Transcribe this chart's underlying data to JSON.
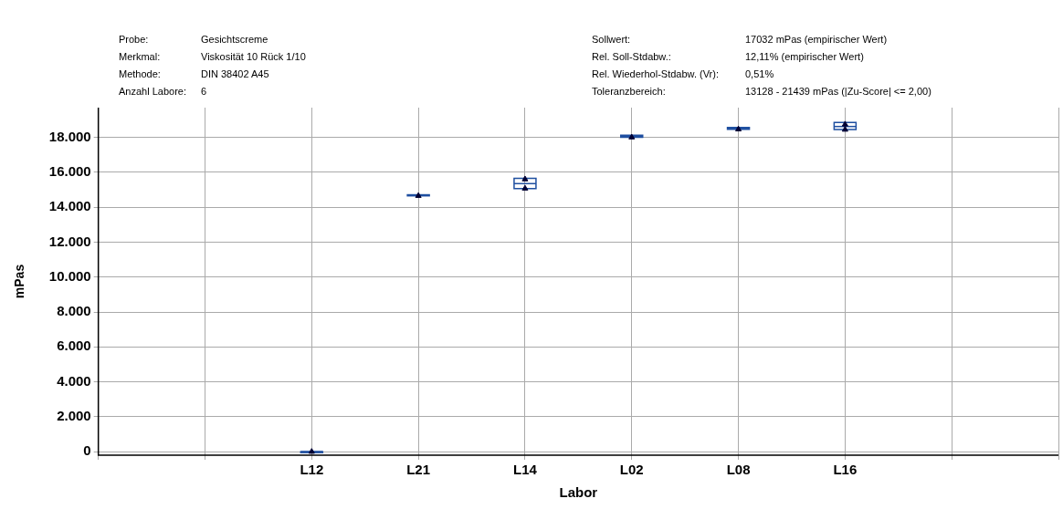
{
  "chart_data": {
    "type": "box",
    "xlabel": "Labor",
    "ylabel": "mPas",
    "annotations": [
      "Probe:",
      "Gesichtscreme",
      "Sollwert:",
      "17032 mPas (empirischer Wert)",
      "Merkmal:",
      "Viskosität 10 Rück 1/10",
      "Rel. Soll-Stdabw.:",
      "12,11% (empirischer Wert)",
      "Methode:",
      "DIN 38402 A45",
      "Rel. Wiederhol-Stdabw. (Vr):",
      "0,51%",
      "Anzahl Labore:",
      "6",
      "Toleranzbereich:",
      "13128 - 21439 mPas (|Zu-Score| <= 2,00)"
    ],
    "categories": [
      null,
      null,
      "L12",
      "L21",
      "L14",
      "L02",
      "L08",
      "L16",
      null,
      null
    ],
    "series": [
      {
        "type": "box",
        "color": "#1f4fa0",
        "boxes": [
          null,
          null,
          {
            "low": 0,
            "q1": 0,
            "median": 0,
            "q3": 0,
            "high": 0
          },
          {
            "low": 14650,
            "q1": 14650,
            "median": 14680,
            "q3": 14710,
            "high": 14710
          },
          {
            "low": 15070,
            "q1": 15070,
            "median": 15350,
            "q3": 15650,
            "high": 15650
          },
          {
            "low": 18000,
            "q1": 18000,
            "median": 18060,
            "q3": 18120,
            "high": 18120
          },
          {
            "low": 18460,
            "q1": 18460,
            "median": 18510,
            "q3": 18560,
            "high": 18560
          },
          {
            "low": 18440,
            "q1": 18440,
            "median": 18620,
            "q3": 18850,
            "high": 18850
          },
          null,
          null
        ]
      },
      {
        "type": "scatter",
        "color": "#000033",
        "marker": "triangle",
        "x": [
          "L12",
          "L21",
          "L14",
          "L14",
          "L02",
          "L08",
          "L16",
          "L16"
        ],
        "values": [
          0,
          14650,
          15070,
          15600,
          18000,
          18460,
          18440,
          18740
        ]
      }
    ],
    "ylim": [
      -200,
      19700
    ],
    "yticks": [
      0,
      {
        "value": 2000,
        "label": "2.000"
      },
      {
        "value": 4000,
        "label": "4.000"
      },
      {
        "value": 6000,
        "label": "6.000"
      },
      {
        "value": 8000,
        "label": "8.000"
      },
      {
        "value": 10000,
        "label": "10.000"
      },
      {
        "value": 12000,
        "label": "12.000"
      },
      {
        "value": 14000,
        "label": "14.000"
      },
      {
        "value": 16000,
        "label": "16.000"
      },
      {
        "value": 18000,
        "label": "18.000"
      }
    ],
    "grid": true
  }
}
